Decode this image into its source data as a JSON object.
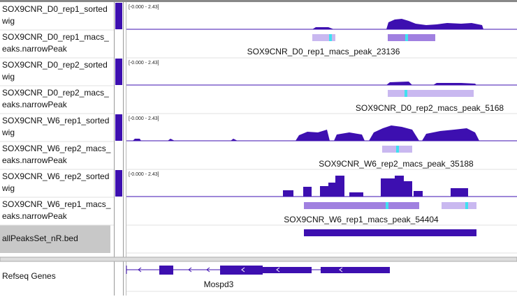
{
  "tracks": [
    {
      "name_lines": [
        "SOX9CNR_D0_rep1_sorted",
        "wig"
      ],
      "data_range": "[-0.000 - 2.43]"
    },
    {
      "name_lines": [
        "SOX9CNR_D0_rep1_macs_",
        "eaks.narrowPeak"
      ],
      "feature_label": "SOX9CNR_D0_rep1_macs_peak_23136"
    },
    {
      "name_lines": [
        "SOX9CNR_D0_rep2_sorted",
        "wig"
      ],
      "data_range": "[-0.000 - 2.43]"
    },
    {
      "name_lines": [
        "SOX9CNR_D0_rep2_macs_",
        "eaks.narrowPeak"
      ],
      "feature_label": "SOX9CNR_D0_rep2_macs_peak_5168"
    },
    {
      "name_lines": [
        "SOX9CNR_W6_rep1_sorted",
        "wig"
      ],
      "data_range": "[-0.000 - 2.43]"
    },
    {
      "name_lines": [
        "SOX9CNR_W6_rep2_macs_",
        "eaks.narrowPeak"
      ],
      "feature_label": "SOX9CNR_W6_rep2_macs_peak_35188"
    },
    {
      "name_lines": [
        "SOX9CNR_W6_rep2_sorted",
        "wig"
      ],
      "data_range": "[-0.000 - 2.43]"
    },
    {
      "name_lines": [
        "SOX9CNR_W6_rep1_macs_",
        "eaks.narrowPeak"
      ],
      "feature_label": "SOX9CNR_W6_rep1_macs_peak_54404"
    }
  ],
  "bed_track": {
    "name": "allPeaksSet_nR.bed"
  },
  "gene_track": {
    "name": "Refseq Genes",
    "gene": "Mospd3"
  }
}
